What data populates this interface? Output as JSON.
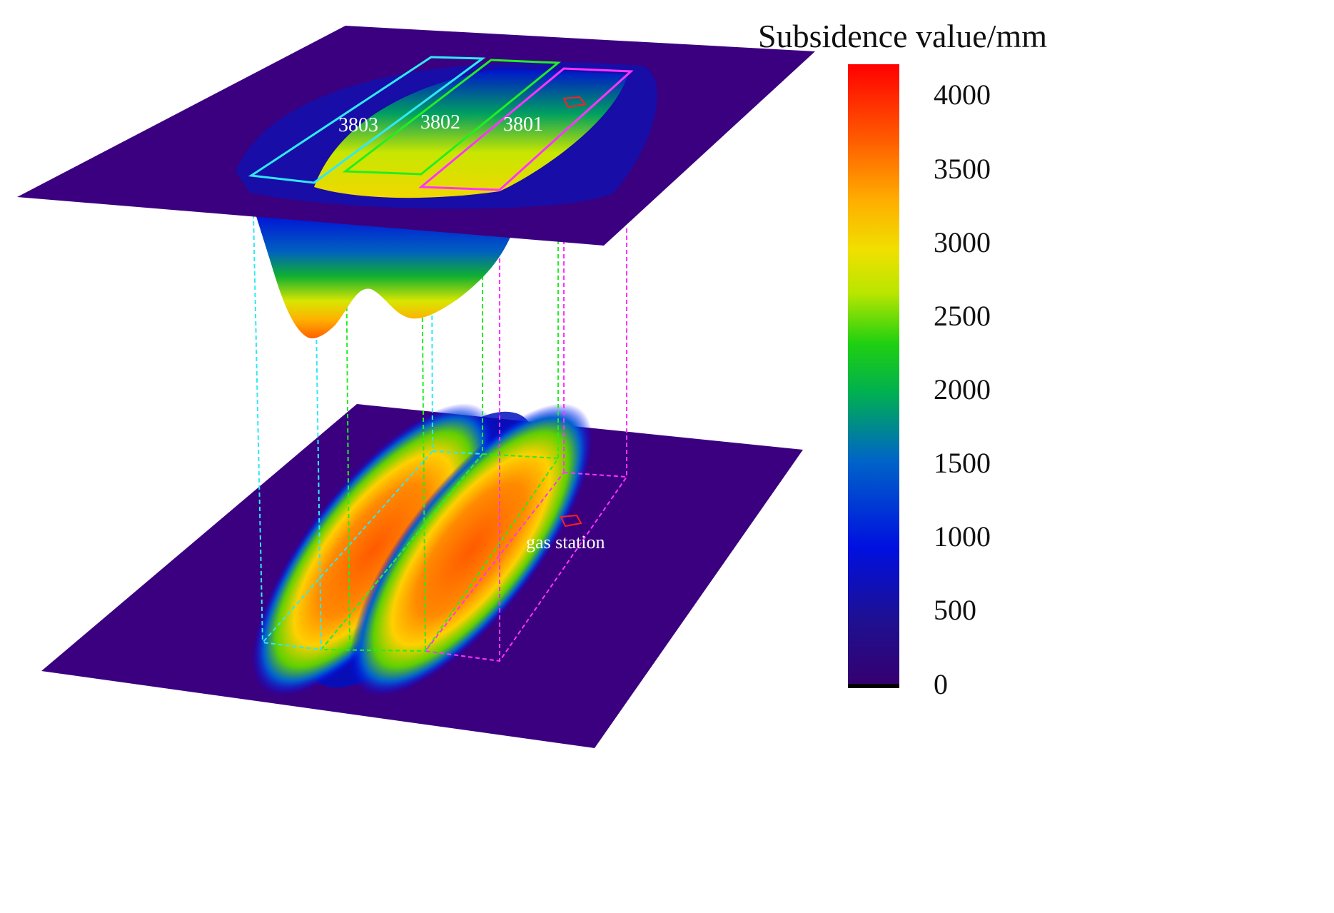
{
  "colorbar": {
    "title": "Subsidence value/mm",
    "ticks": [
      "4000",
      "3500",
      "3000",
      "2500",
      "2000",
      "1500",
      "1000",
      "500",
      "0"
    ],
    "range": [
      0,
      4200
    ],
    "colors": [
      "#000000",
      "#3a0078",
      "#1a1a9a",
      "#0000ff",
      "#0073c8",
      "#00b04a",
      "#00d000",
      "#c8e600",
      "#f0e000",
      "#ffa000",
      "#ff5a00",
      "#ff0000"
    ]
  },
  "panels": {
    "working_faces": [
      "3803",
      "3802",
      "3801"
    ],
    "gas_station_label": "gas station"
  },
  "colors": {
    "background_plane": "#3b0080",
    "face_3803": "#30e8f8",
    "face_3802": "#22ee22",
    "face_3801": "#ff33ff",
    "gas_station": "#ff2020"
  }
}
